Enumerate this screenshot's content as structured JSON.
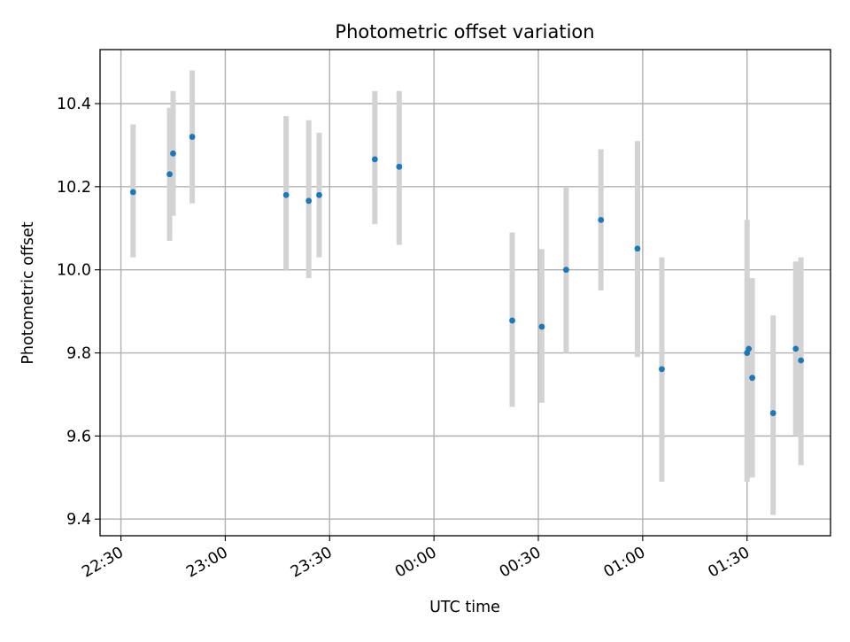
{
  "chart_data": {
    "type": "scatter",
    "title": "Photometric offset variation",
    "xlabel": "UTC time",
    "ylabel": "Photometric offset",
    "x_ticks": [
      "22:30",
      "23:00",
      "23:30",
      "00:00",
      "00:30",
      "01:00",
      "01:30"
    ],
    "y_ticks": [
      "9.4",
      "9.6",
      "9.8",
      "10.0",
      "10.2",
      "10.4"
    ],
    "xlim": [
      "22:24",
      "01:54"
    ],
    "ylim": [
      9.36,
      10.53
    ],
    "grid": true,
    "errorbar_color": "#d3d3d3",
    "marker_color": "#1f77b4",
    "points": [
      {
        "x": "22:33:30",
        "y": 10.187,
        "ylo": 10.03,
        "yhi": 10.35
      },
      {
        "x": "22:44:00",
        "y": 10.23,
        "ylo": 10.07,
        "yhi": 10.39
      },
      {
        "x": "22:45:00",
        "y": 10.28,
        "ylo": 10.13,
        "yhi": 10.43
      },
      {
        "x": "22:50:30",
        "y": 10.32,
        "ylo": 10.16,
        "yhi": 10.48
      },
      {
        "x": "23:17:30",
        "y": 10.18,
        "ylo": 10.0,
        "yhi": 10.37
      },
      {
        "x": "23:24:00",
        "y": 10.166,
        "ylo": 9.98,
        "yhi": 10.36
      },
      {
        "x": "23:27:00",
        "y": 10.18,
        "ylo": 10.03,
        "yhi": 10.33
      },
      {
        "x": "23:43:00",
        "y": 10.266,
        "ylo": 10.11,
        "yhi": 10.43
      },
      {
        "x": "23:50:00",
        "y": 10.248,
        "ylo": 10.06,
        "yhi": 10.43
      },
      {
        "x": "00:22:30",
        "y": 9.878,
        "ylo": 9.67,
        "yhi": 10.09
      },
      {
        "x": "00:31:00",
        "y": 9.863,
        "ylo": 9.68,
        "yhi": 10.05
      },
      {
        "x": "00:38:00",
        "y": 10.0,
        "ylo": 9.8,
        "yhi": 10.2
      },
      {
        "x": "00:48:00",
        "y": 10.12,
        "ylo": 9.95,
        "yhi": 10.29
      },
      {
        "x": "00:58:30",
        "y": 10.051,
        "ylo": 9.79,
        "yhi": 10.31
      },
      {
        "x": "01:05:30",
        "y": 9.761,
        "ylo": 9.49,
        "yhi": 10.03
      },
      {
        "x": "01:30:00",
        "y": 9.8,
        "ylo": 9.49,
        "yhi": 10.12
      },
      {
        "x": "01:30:30",
        "y": 9.81,
        "ylo": 9.5,
        "yhi": 9.98
      },
      {
        "x": "01:31:30",
        "y": 9.74,
        "ylo": 9.5,
        "yhi": 9.98
      },
      {
        "x": "01:37:30",
        "y": 9.655,
        "ylo": 9.41,
        "yhi": 9.89
      },
      {
        "x": "01:44:00",
        "y": 9.81,
        "ylo": 9.6,
        "yhi": 10.02
      },
      {
        "x": "01:45:30",
        "y": 9.782,
        "ylo": 9.53,
        "yhi": 10.03
      }
    ]
  }
}
